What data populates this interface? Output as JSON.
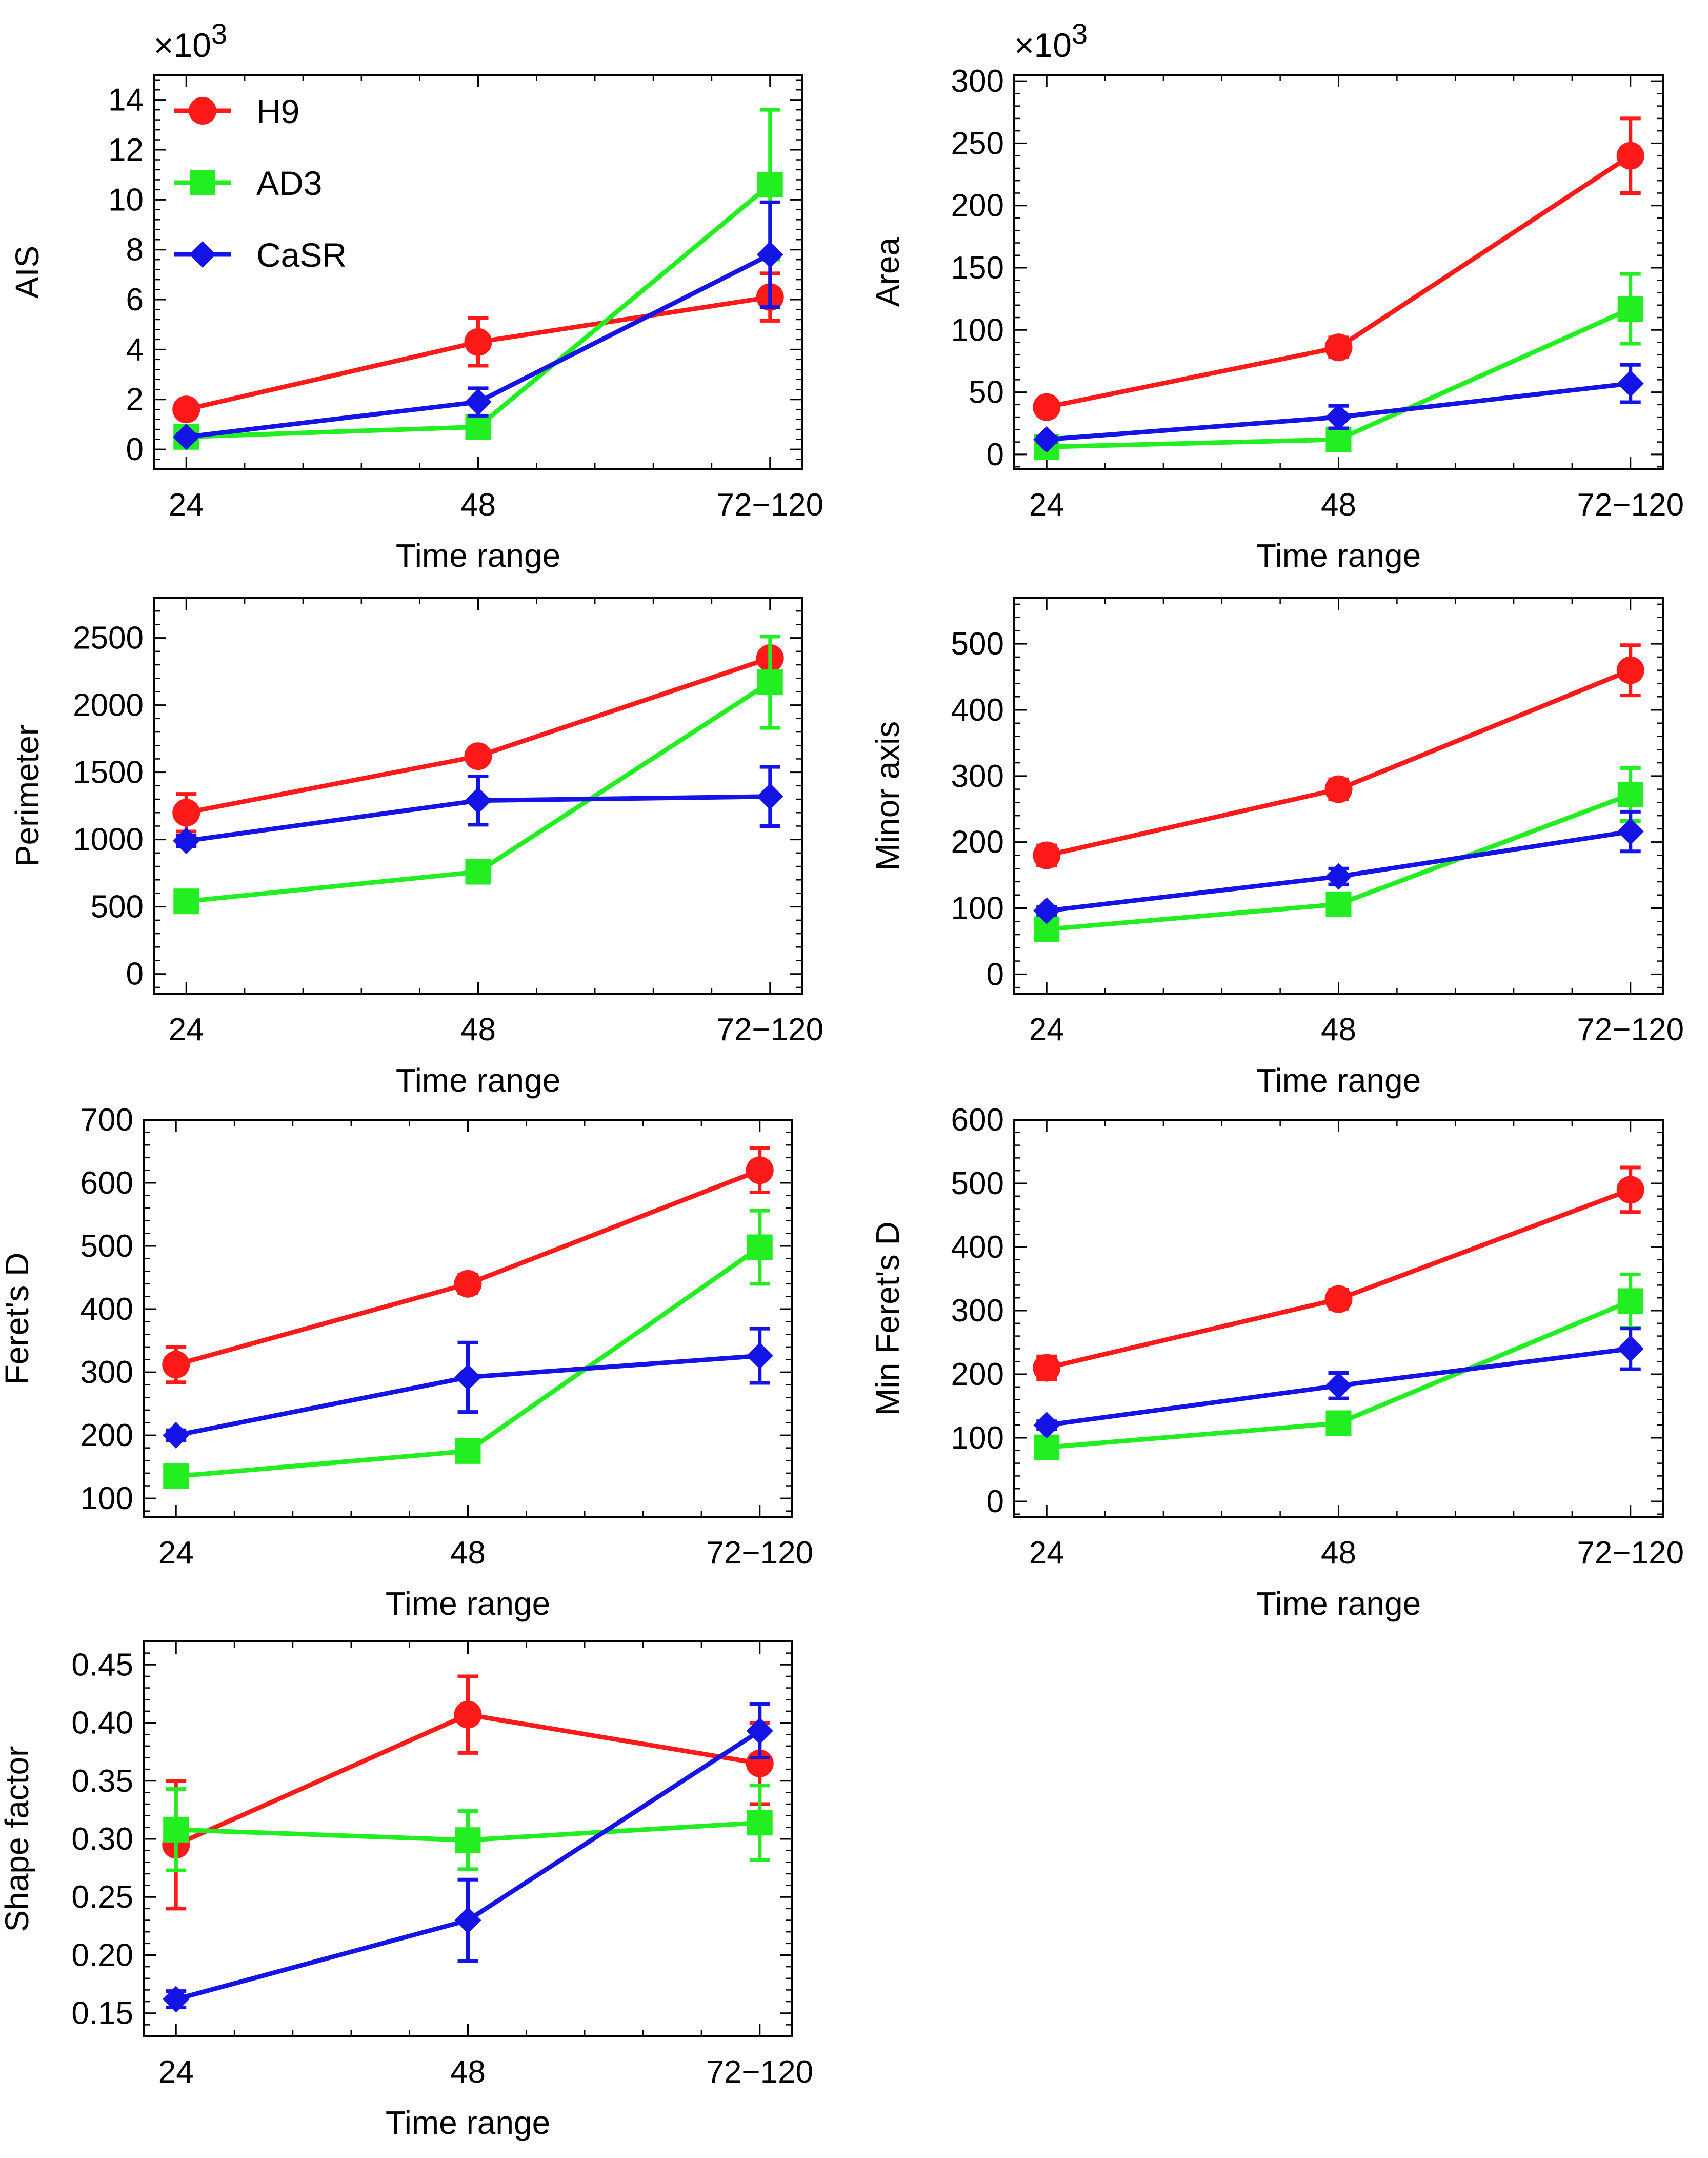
{
  "figure": {
    "series_names": [
      "H9",
      "AD3",
      "CaSR"
    ],
    "series_colors": [
      "#ff1a1a",
      "#22ee22",
      "#1414e6"
    ],
    "series_markers": [
      "circle",
      "square",
      "diamond"
    ]
  },
  "chart_data": [
    {
      "id": "ais",
      "type": "line",
      "title": "",
      "xlabel": "Time range",
      "ylabel": "AIS",
      "multiplier": "×10",
      "multiplier_exp": "3",
      "categories": [
        "24",
        "48",
        "72−120"
      ],
      "ylim": [
        -0.8,
        15
      ],
      "yticks": [
        0,
        2,
        4,
        6,
        8,
        10,
        12,
        14
      ],
      "ytick_labels": [
        "0",
        "2",
        "4",
        "6",
        "8",
        "10",
        "12",
        "14"
      ],
      "legend": {
        "position": "top-left",
        "entries": [
          "H9",
          "AD3",
          "CaSR"
        ]
      },
      "series": [
        {
          "name": "H9",
          "values": [
            1.6,
            4.3,
            6.1
          ],
          "errors": [
            0.2,
            0.95,
            0.95
          ]
        },
        {
          "name": "AD3",
          "values": [
            0.5,
            0.9,
            10.6
          ],
          "errors": [
            0.15,
            0.2,
            3.0
          ]
        },
        {
          "name": "CaSR",
          "values": [
            0.5,
            1.9,
            7.8
          ],
          "errors": [
            0.1,
            0.55,
            2.1
          ]
        }
      ]
    },
    {
      "id": "area",
      "type": "line",
      "title": "",
      "xlabel": "Time range",
      "ylabel": "Area",
      "multiplier": "×10",
      "multiplier_exp": "3",
      "categories": [
        "24",
        "48",
        "72−120"
      ],
      "ylim": [
        -12,
        305
      ],
      "yticks": [
        0,
        50,
        100,
        150,
        200,
        250,
        300
      ],
      "ytick_labels": [
        "0",
        "50",
        "100",
        "150",
        "200",
        "250",
        "300"
      ],
      "series": [
        {
          "name": "H9",
          "values": [
            38,
            86,
            240
          ],
          "errors": [
            6,
            8,
            30
          ]
        },
        {
          "name": "AD3",
          "values": [
            6,
            12,
            117
          ],
          "errors": [
            2,
            4,
            28
          ]
        },
        {
          "name": "CaSR",
          "values": [
            12,
            30,
            57
          ],
          "errors": [
            2,
            9,
            15
          ]
        }
      ]
    },
    {
      "id": "perimeter",
      "type": "line",
      "title": "",
      "xlabel": "Time range",
      "ylabel": "Perimeter",
      "categories": [
        "24",
        "48",
        "72−120"
      ],
      "ylim": [
        -150,
        2800
      ],
      "yticks": [
        0,
        500,
        1000,
        1500,
        2000,
        2500
      ],
      "ytick_labels": [
        "0",
        "500",
        "1000",
        "1500",
        "2000",
        "2500"
      ],
      "series": [
        {
          "name": "H9",
          "values": [
            1200,
            1620,
            2350
          ],
          "errors": [
            140,
            50,
            60
          ]
        },
        {
          "name": "AD3",
          "values": [
            540,
            760,
            2170
          ],
          "errors": [
            40,
            40,
            340
          ]
        },
        {
          "name": "CaSR",
          "values": [
            990,
            1290,
            1320
          ],
          "errors": [
            40,
            180,
            220
          ]
        }
      ]
    },
    {
      "id": "minor-axis",
      "type": "line",
      "title": "",
      "xlabel": "Time range",
      "ylabel": "Minor axis",
      "categories": [
        "24",
        "48",
        "72−120"
      ],
      "ylim": [
        -30,
        570
      ],
      "yticks": [
        0,
        100,
        200,
        300,
        400,
        500
      ],
      "ytick_labels": [
        "0",
        "100",
        "200",
        "300",
        "400",
        "500"
      ],
      "series": [
        {
          "name": "H9",
          "values": [
            180,
            280,
            460
          ],
          "errors": [
            15,
            15,
            38
          ]
        },
        {
          "name": "AD3",
          "values": [
            68,
            106,
            272
          ],
          "errors": [
            8,
            10,
            40
          ]
        },
        {
          "name": "CaSR",
          "values": [
            96,
            148,
            216
          ],
          "errors": [
            6,
            12,
            30
          ]
        }
      ]
    },
    {
      "id": "ferets-d",
      "type": "line",
      "title": "",
      "xlabel": "Time range",
      "ylabel": "Feret's D",
      "categories": [
        "24",
        "48",
        "72−120"
      ],
      "ylim": [
        70,
        700
      ],
      "yticks": [
        100,
        200,
        300,
        400,
        500,
        600,
        700
      ],
      "ytick_labels": [
        "100",
        "200",
        "300",
        "400",
        "500",
        "600",
        "700"
      ],
      "series": [
        {
          "name": "H9",
          "values": [
            312,
            440,
            620
          ],
          "errors": [
            28,
            15,
            35
          ]
        },
        {
          "name": "AD3",
          "values": [
            135,
            175,
            498
          ],
          "errors": [
            10,
            12,
            58
          ]
        },
        {
          "name": "CaSR",
          "values": [
            200,
            292,
            326
          ],
          "errors": [
            8,
            55,
            43
          ]
        }
      ]
    },
    {
      "id": "min-ferets-d",
      "type": "line",
      "title": "",
      "xlabel": "Time range",
      "ylabel": "Min Feret's D",
      "categories": [
        "24",
        "48",
        "72−120"
      ],
      "ylim": [
        -25,
        600
      ],
      "yticks": [
        0,
        100,
        200,
        300,
        400,
        500,
        600
      ],
      "ytick_labels": [
        "0",
        "100",
        "200",
        "300",
        "400",
        "500",
        "600"
      ],
      "series": [
        {
          "name": "H9",
          "values": [
            210,
            318,
            490
          ],
          "errors": [
            18,
            15,
            35
          ]
        },
        {
          "name": "AD3",
          "values": [
            85,
            123,
            315
          ],
          "errors": [
            8,
            10,
            42
          ]
        },
        {
          "name": "CaSR",
          "values": [
            120,
            182,
            240
          ],
          "errors": [
            6,
            20,
            32
          ]
        }
      ]
    },
    {
      "id": "shape-factor",
      "type": "line",
      "title": "",
      "xlabel": "Time range",
      "ylabel": "Shape factor",
      "categories": [
        "24",
        "48",
        "72−120"
      ],
      "ylim": [
        0.13,
        0.47
      ],
      "yticks": [
        0.15,
        0.2,
        0.25,
        0.3,
        0.35,
        0.4,
        0.45
      ],
      "ytick_labels": [
        "0.15",
        "0.20",
        "0.25",
        "0.30",
        "0.35",
        "0.40",
        "0.45"
      ],
      "series": [
        {
          "name": "H9",
          "values": [
            0.295,
            0.407,
            0.365
          ],
          "errors": [
            0.055,
            0.033,
            0.035
          ]
        },
        {
          "name": "AD3",
          "values": [
            0.308,
            0.299,
            0.314
          ],
          "errors": [
            0.035,
            0.025,
            0.032
          ]
        },
        {
          "name": "CaSR",
          "values": [
            0.162,
            0.23,
            0.393
          ],
          "errors": [
            0.007,
            0.035,
            0.023
          ]
        }
      ]
    }
  ]
}
